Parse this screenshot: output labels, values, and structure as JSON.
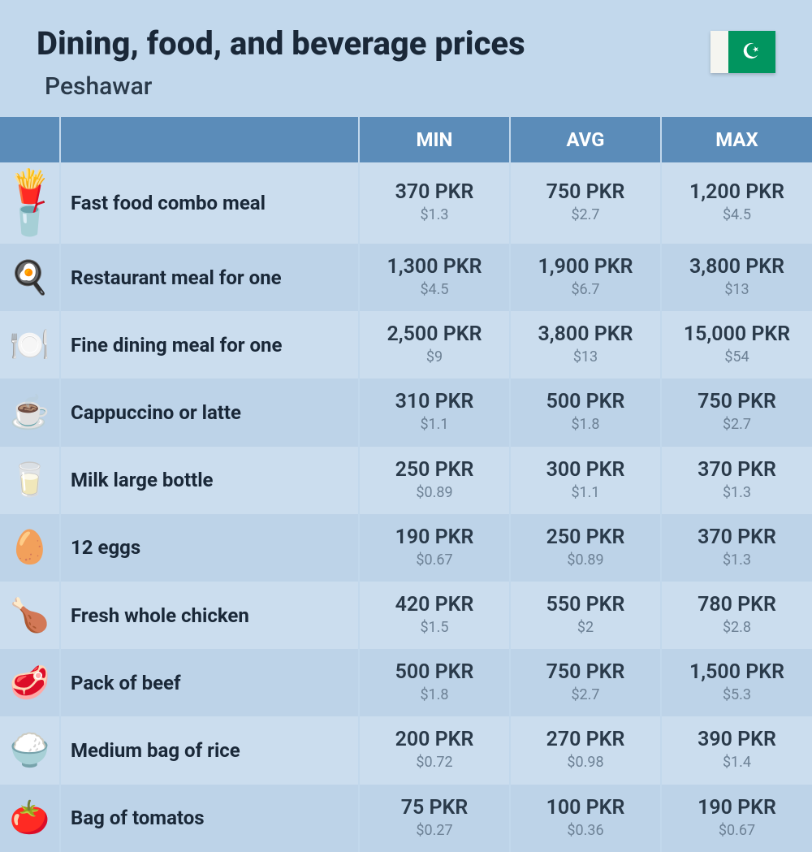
{
  "header": {
    "title": "Dining, food, and beverage prices",
    "location": "Peshawar"
  },
  "columns": {
    "min": "MIN",
    "avg": "AVG",
    "max": "MAX"
  },
  "rows": [
    {
      "icon": "🍟🥤",
      "name": "Fast food combo meal",
      "min_pkr": "370 PKR",
      "min_usd": "$1.3",
      "avg_pkr": "750 PKR",
      "avg_usd": "$2.7",
      "max_pkr": "1,200 PKR",
      "max_usd": "$4.5"
    },
    {
      "icon": "🍳",
      "name": "Restaurant meal for one",
      "min_pkr": "1,300 PKR",
      "min_usd": "$4.5",
      "avg_pkr": "1,900 PKR",
      "avg_usd": "$6.7",
      "max_pkr": "3,800 PKR",
      "max_usd": "$13"
    },
    {
      "icon": "🍽️",
      "name": "Fine dining meal for one",
      "min_pkr": "2,500 PKR",
      "min_usd": "$9",
      "avg_pkr": "3,800 PKR",
      "avg_usd": "$13",
      "max_pkr": "15,000 PKR",
      "max_usd": "$54"
    },
    {
      "icon": "☕",
      "name": "Cappuccino or latte",
      "min_pkr": "310 PKR",
      "min_usd": "$1.1",
      "avg_pkr": "500 PKR",
      "avg_usd": "$1.8",
      "max_pkr": "750 PKR",
      "max_usd": "$2.7"
    },
    {
      "icon": "🥛",
      "name": "Milk large bottle",
      "min_pkr": "250 PKR",
      "min_usd": "$0.89",
      "avg_pkr": "300 PKR",
      "avg_usd": "$1.1",
      "max_pkr": "370 PKR",
      "max_usd": "$1.3"
    },
    {
      "icon": "🥚",
      "name": "12 eggs",
      "min_pkr": "190 PKR",
      "min_usd": "$0.67",
      "avg_pkr": "250 PKR",
      "avg_usd": "$0.89",
      "max_pkr": "370 PKR",
      "max_usd": "$1.3"
    },
    {
      "icon": "🍗",
      "name": "Fresh whole chicken",
      "min_pkr": "420 PKR",
      "min_usd": "$1.5",
      "avg_pkr": "550 PKR",
      "avg_usd": "$2",
      "max_pkr": "780 PKR",
      "max_usd": "$2.8"
    },
    {
      "icon": "🥩",
      "name": "Pack of beef",
      "min_pkr": "500 PKR",
      "min_usd": "$1.8",
      "avg_pkr": "750 PKR",
      "avg_usd": "$2.7",
      "max_pkr": "1,500 PKR",
      "max_usd": "$5.3"
    },
    {
      "icon": "🍚",
      "name": "Medium bag of rice",
      "min_pkr": "200 PKR",
      "min_usd": "$0.72",
      "avg_pkr": "270 PKR",
      "avg_usd": "$0.98",
      "max_pkr": "390 PKR",
      "max_usd": "$1.4"
    },
    {
      "icon": "🍅",
      "name": "Bag of tomatos",
      "min_pkr": "75 PKR",
      "min_usd": "$0.27",
      "avg_pkr": "100 PKR",
      "avg_usd": "$0.36",
      "max_pkr": "190 PKR",
      "max_usd": "$0.67"
    }
  ]
}
